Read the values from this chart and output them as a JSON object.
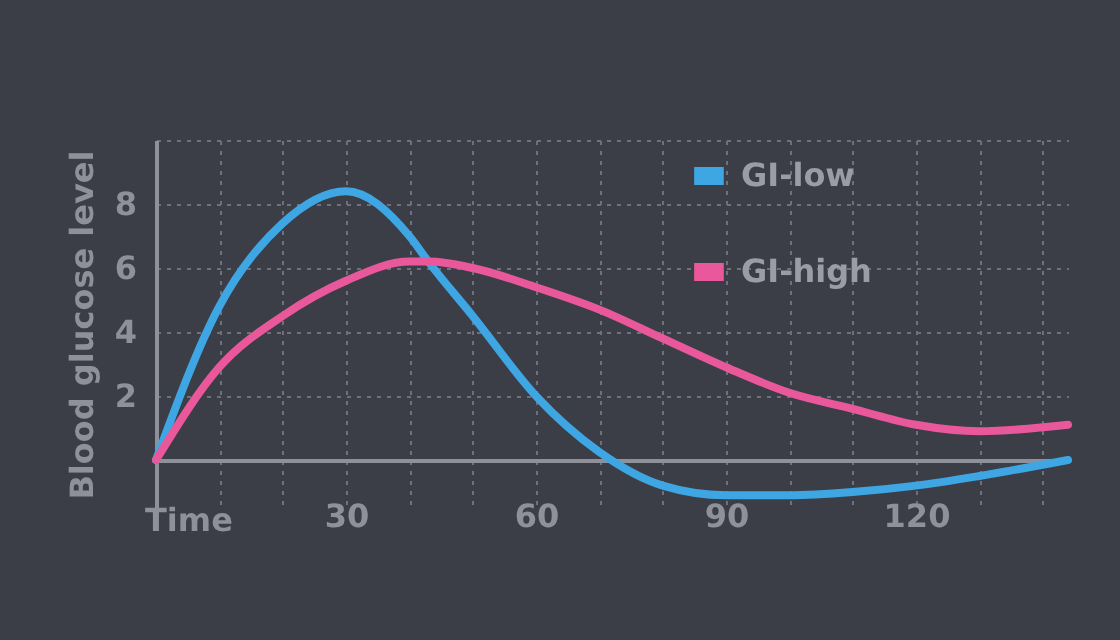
{
  "chart_data": {
    "type": "line",
    "xlabel": "Time",
    "ylabel": "Blood glucose level",
    "x": [
      0,
      10,
      20,
      30,
      40,
      43,
      50,
      60,
      70,
      80,
      90,
      100,
      110,
      120,
      130,
      144
    ],
    "series": [
      {
        "name": "GI-low",
        "color": "#3ea6e3",
        "values": [
          0,
          4.8,
          7.4,
          8.4,
          7.0,
          6.2,
          4.5,
          2.0,
          0.25,
          -0.8,
          -1.1,
          -1.1,
          -1.0,
          -0.8,
          -0.5,
          0
        ]
      },
      {
        "name": "GI-high",
        "color": "#e8589a",
        "values": [
          0,
          2.9,
          4.5,
          5.6,
          6.2,
          6.2,
          6.0,
          5.4,
          4.7,
          3.8,
          2.9,
          2.1,
          1.6,
          1.1,
          0.9,
          1.1
        ]
      }
    ],
    "xlim": [
      0,
      144
    ],
    "ylim": [
      -1.5,
      10
    ],
    "xticks": [
      {
        "value": 10,
        "label": null
      },
      {
        "value": 20,
        "label": null
      },
      30,
      {
        "value": 40,
        "label": null
      },
      {
        "value": 50,
        "label": null
      },
      60,
      {
        "value": 70,
        "label": null
      },
      {
        "value": 80,
        "label": null
      },
      90,
      {
        "value": 100,
        "label": null
      },
      {
        "value": 110,
        "label": null
      },
      120,
      {
        "value": 130,
        "label": null
      },
      {
        "value": 140,
        "label": null
      }
    ],
    "yticks": [
      2,
      4,
      6,
      8,
      {
        "value": 10,
        "label": null
      }
    ],
    "grid": true,
    "legend": "top",
    "marker": "none",
    "line_style": "solid"
  }
}
